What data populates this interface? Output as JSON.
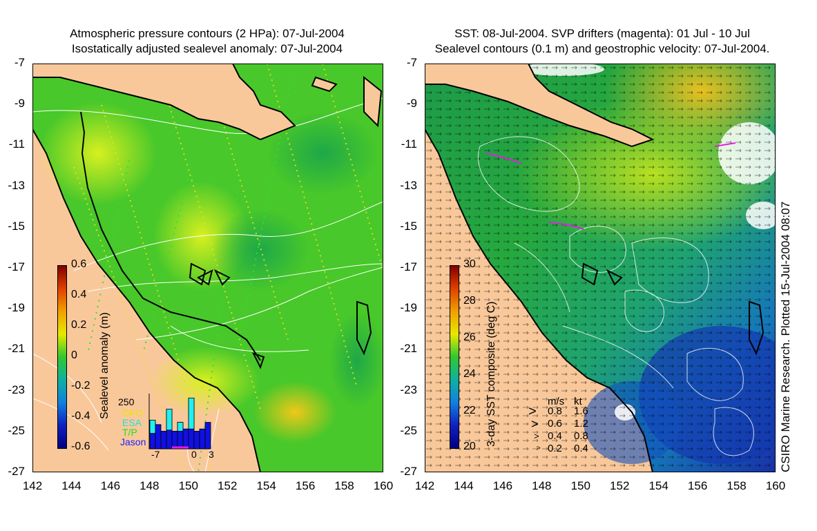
{
  "left_panel": {
    "title_line1": "Atmospheric pressure contours (2 HPa): 07-Jul-2004",
    "title_line2": "Isostatically adjusted sealevel anomaly: 07-Jul-2004",
    "colorbar": {
      "label": "Sealevel anomaly (m)",
      "ticks": [
        "0.6",
        "0.4",
        "0.2",
        "0",
        "-0.2",
        "-0.4",
        "-0.6"
      ],
      "range": [
        -0.6,
        0.6
      ]
    },
    "histogram": {
      "ymax_label": "250",
      "x_ticks": [
        "-7",
        "0",
        "3"
      ],
      "legend": [
        {
          "name": "GFO",
          "color": "#f0e000"
        },
        {
          "name": "ESA",
          "color": "#20e0e0"
        },
        {
          "name": "T/P",
          "color": "#20e020"
        },
        {
          "name": "Jason",
          "color": "#2020ff"
        }
      ],
      "bars": [
        {
          "day": -7,
          "total": 130,
          "cyan": 60
        },
        {
          "day": -6,
          "total": 110,
          "cyan": 0
        },
        {
          "day": -5,
          "total": 80,
          "cyan": 0
        },
        {
          "day": -4,
          "total": 180,
          "cyan": 95
        },
        {
          "day": -3,
          "total": 80,
          "cyan": 0
        },
        {
          "day": -2,
          "total": 120,
          "cyan": 40
        },
        {
          "day": -1,
          "total": 90,
          "cyan": 0
        },
        {
          "day": 0,
          "total": 230,
          "cyan": 140
        },
        {
          "day": 1,
          "total": 80,
          "cyan": 0
        },
        {
          "day": 2,
          "total": 90,
          "cyan": 0
        },
        {
          "day": 3,
          "total": 120,
          "cyan": 0
        }
      ]
    }
  },
  "right_panel": {
    "title_line1": "SST: 08-Jul-2004. SVP drifters (magenta): 01 Jul - 10 Jul",
    "title_line2": "Sealevel contours (0.1 m) and geostrophic velocity: 07-Jul-2004.",
    "colorbar": {
      "label": "3-day SST composite (deg C)",
      "ticks": [
        "30",
        "28",
        "26",
        "24",
        "22",
        "20"
      ],
      "range": [
        20,
        30
      ]
    },
    "velocity_legend": {
      "header": [
        "m/s",
        "kt"
      ],
      "rows": [
        {
          "ms": "0.8",
          "kt": "1.6"
        },
        {
          "ms": "0.6",
          "kt": "1.2"
        },
        {
          "ms": "0.4",
          "kt": "0.8"
        },
        {
          "ms": "0.2",
          "kt": "0.4"
        }
      ]
    },
    "credit": "CSIRO Marine Research. Plotted 15-Jul-2004 08:07"
  },
  "axes": {
    "lat_ticks": [
      "-7",
      "-9",
      "-11",
      "-13",
      "-15",
      "-17",
      "-19",
      "-21",
      "-23",
      "-25",
      "-27"
    ],
    "lon_ticks": [
      "142",
      "144",
      "146",
      "148",
      "150",
      "152",
      "154",
      "156",
      "158",
      "160"
    ],
    "lat_range": [
      -27,
      -7
    ],
    "lon_range": [
      142,
      160
    ]
  },
  "colors": {
    "land": "#f9c89a",
    "ocean_left": "#3cc42a",
    "ocean_right": "#2ea83c"
  }
}
